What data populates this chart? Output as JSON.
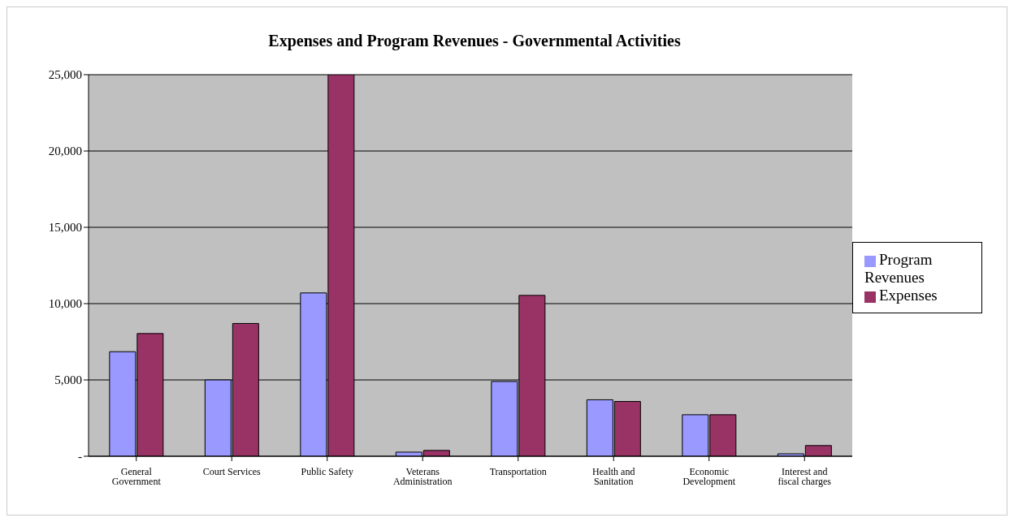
{
  "chart_data": {
    "type": "bar",
    "title": "Expenses and Program Revenues - Governmental Activities",
    "categories": [
      "General Government",
      "Court Services",
      "Public Safety",
      "Veterans Administration",
      "Transportation",
      "Health and Sanitation",
      "Economic Development",
      "Interest and fiscal charges"
    ],
    "series": [
      {
        "name": "Program Revenues",
        "color": "#9999ff",
        "values": [
          6850,
          5000,
          10700,
          270,
          4900,
          3700,
          2720,
          160
        ]
      },
      {
        "name": "Expenses",
        "color": "#993366",
        "values": [
          8040,
          8700,
          25000,
          380,
          10540,
          3590,
          2720,
          700
        ]
      }
    ],
    "ylim": [
      0,
      25000
    ],
    "yticks": [
      {
        "value": 0,
        "label": "-"
      },
      {
        "value": 5000,
        "label": "5,000"
      },
      {
        "value": 10000,
        "label": "10,000"
      },
      {
        "value": 15000,
        "label": "15,000"
      },
      {
        "value": 20000,
        "label": "20,000"
      },
      {
        "value": 25000,
        "label": "25,000"
      }
    ],
    "grid": "y",
    "legend": "right"
  }
}
